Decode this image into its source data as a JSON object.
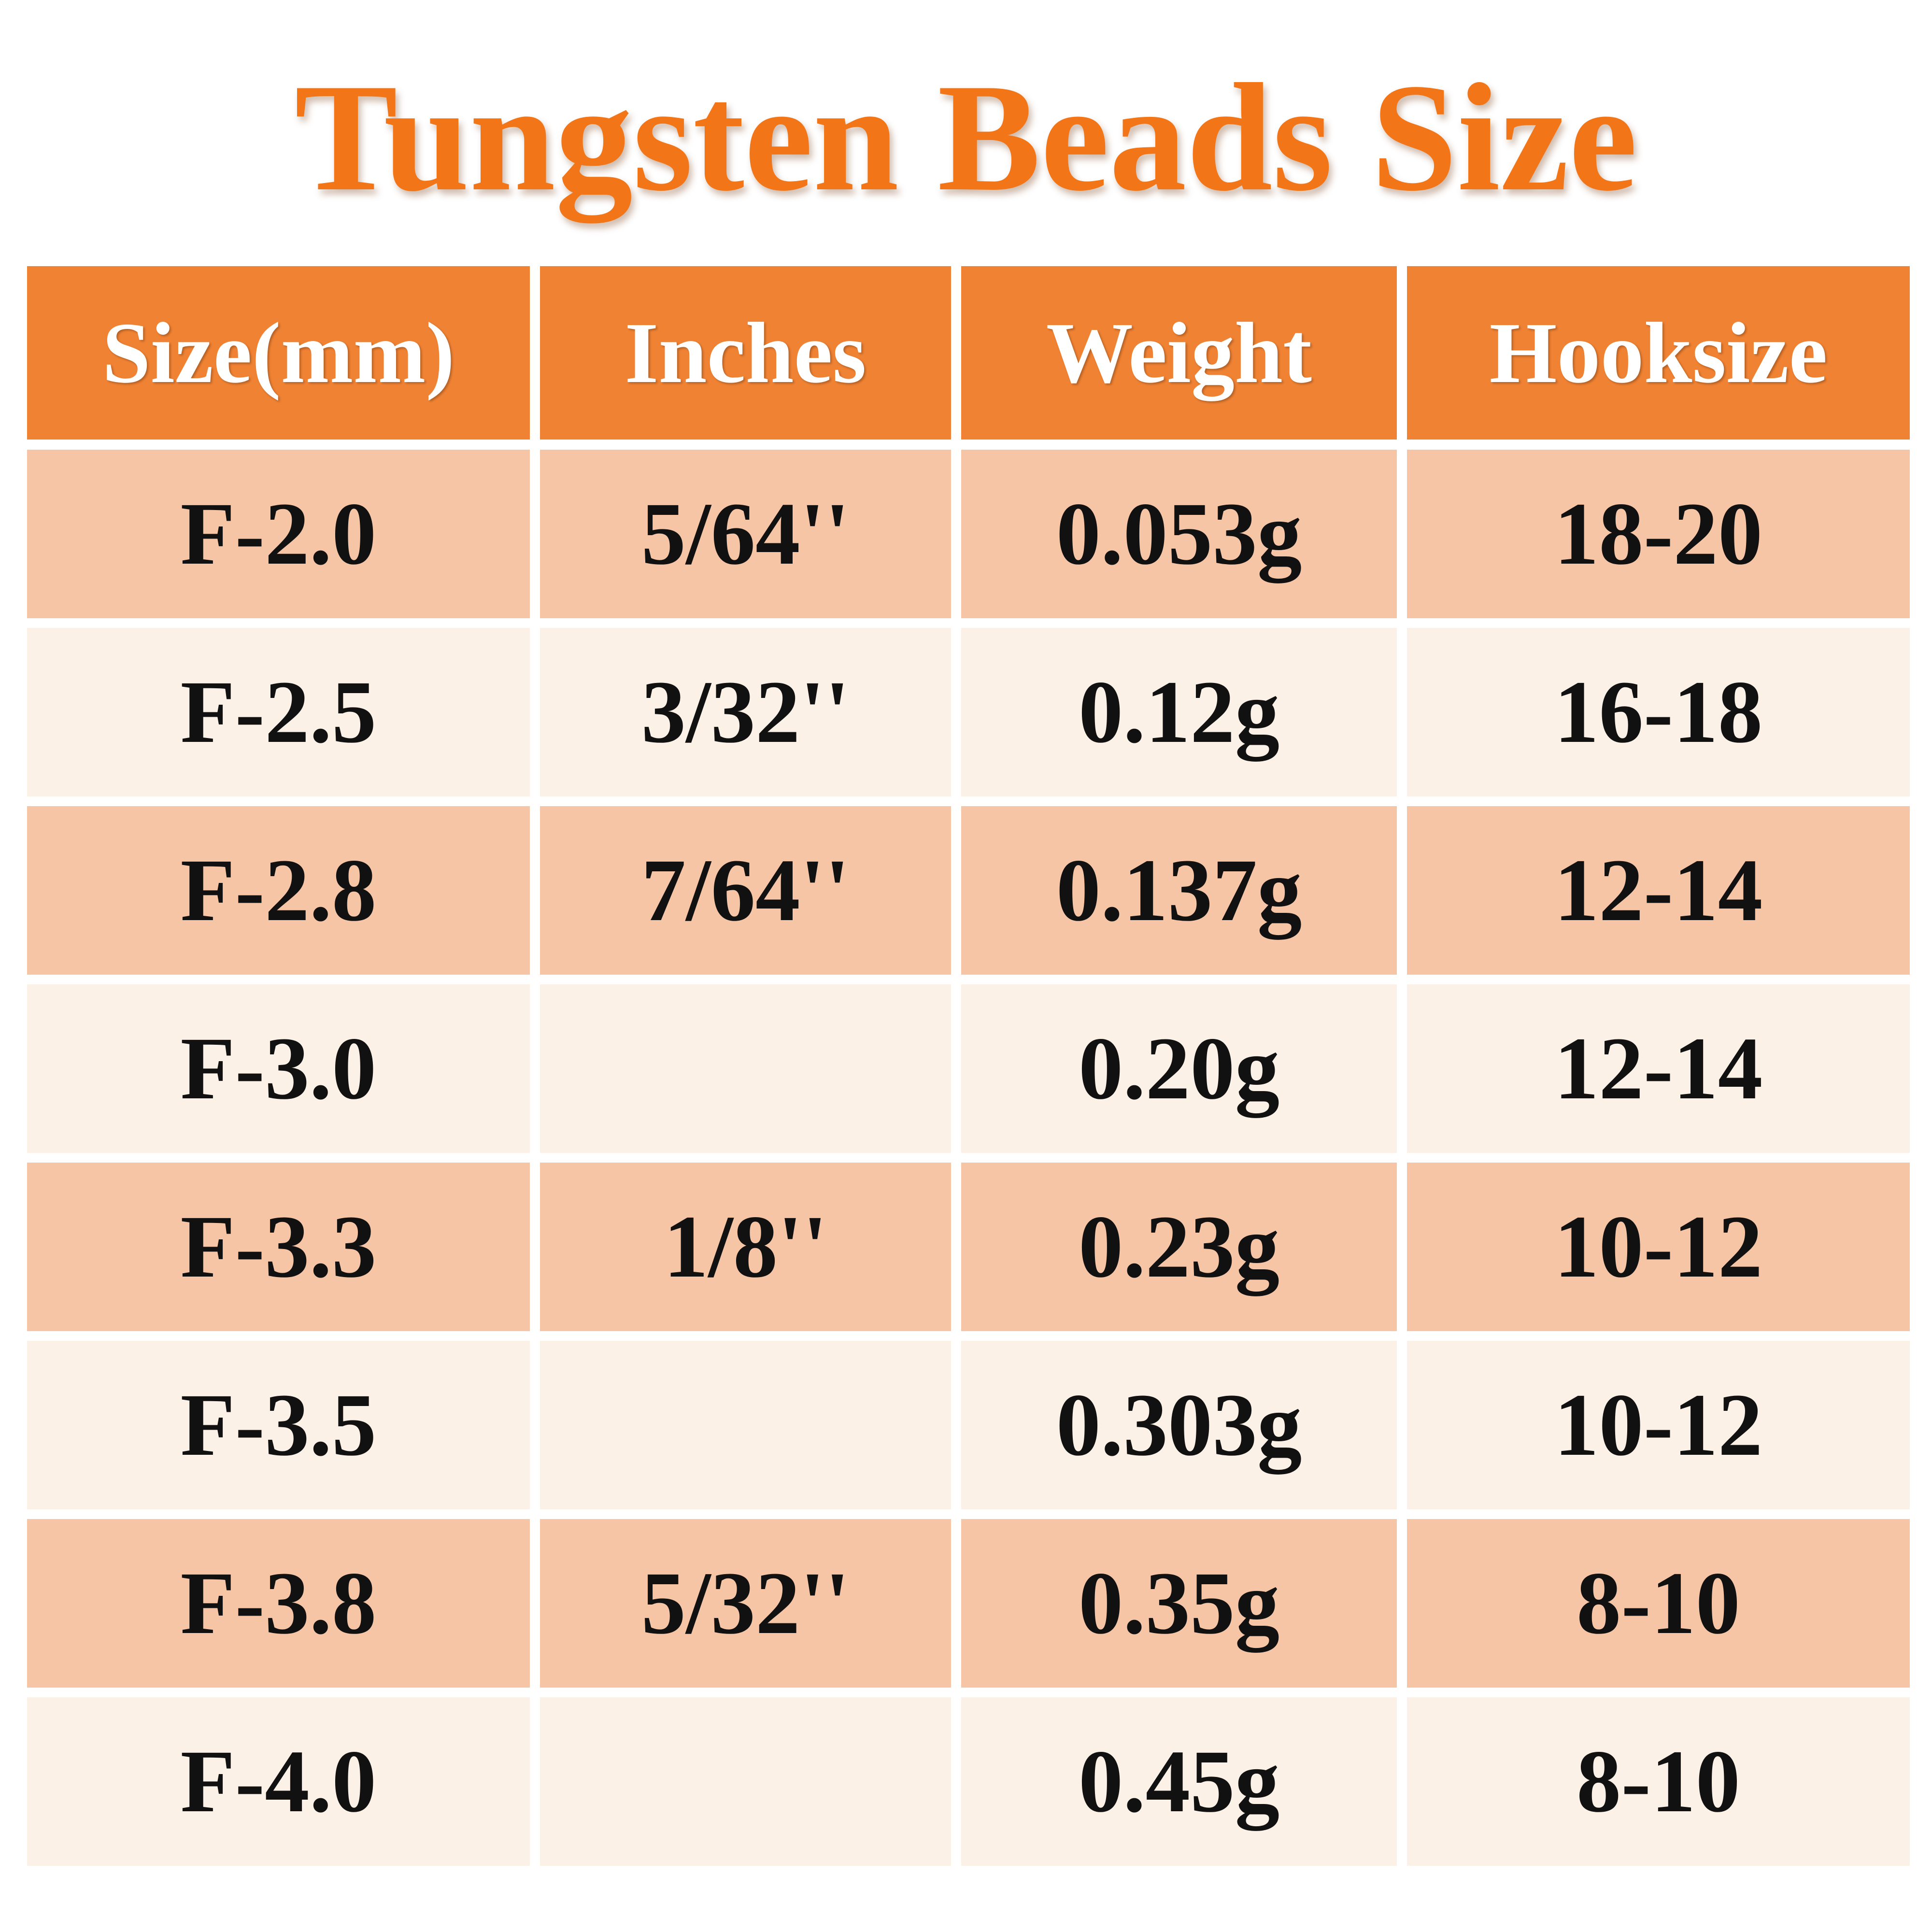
{
  "title": "Tungsten Beads Size",
  "table": {
    "header": [
      "Size(mm)",
      "Inches",
      "Weight",
      "Hooksize"
    ],
    "rows": [
      [
        "F-2.0",
        "5/64''",
        "0.053g",
        "18-20"
      ],
      [
        "F-2.5",
        "3/32''",
        "0.12g",
        "16-18"
      ],
      [
        "F-2.8",
        "7/64''",
        "0.137g",
        "12-14"
      ],
      [
        "F-3.0",
        null,
        "0.20g",
        "12-14"
      ],
      [
        "F-3.3",
        "1/8''",
        "0.23g",
        "10-12"
      ],
      [
        "F-3.5",
        null,
        "0.303g",
        "10-12"
      ],
      [
        "F-3.8",
        "5/32''",
        "0.35g",
        "8-10"
      ],
      [
        "F-4.0",
        null,
        "0.45g",
        "8-10"
      ]
    ]
  }
}
